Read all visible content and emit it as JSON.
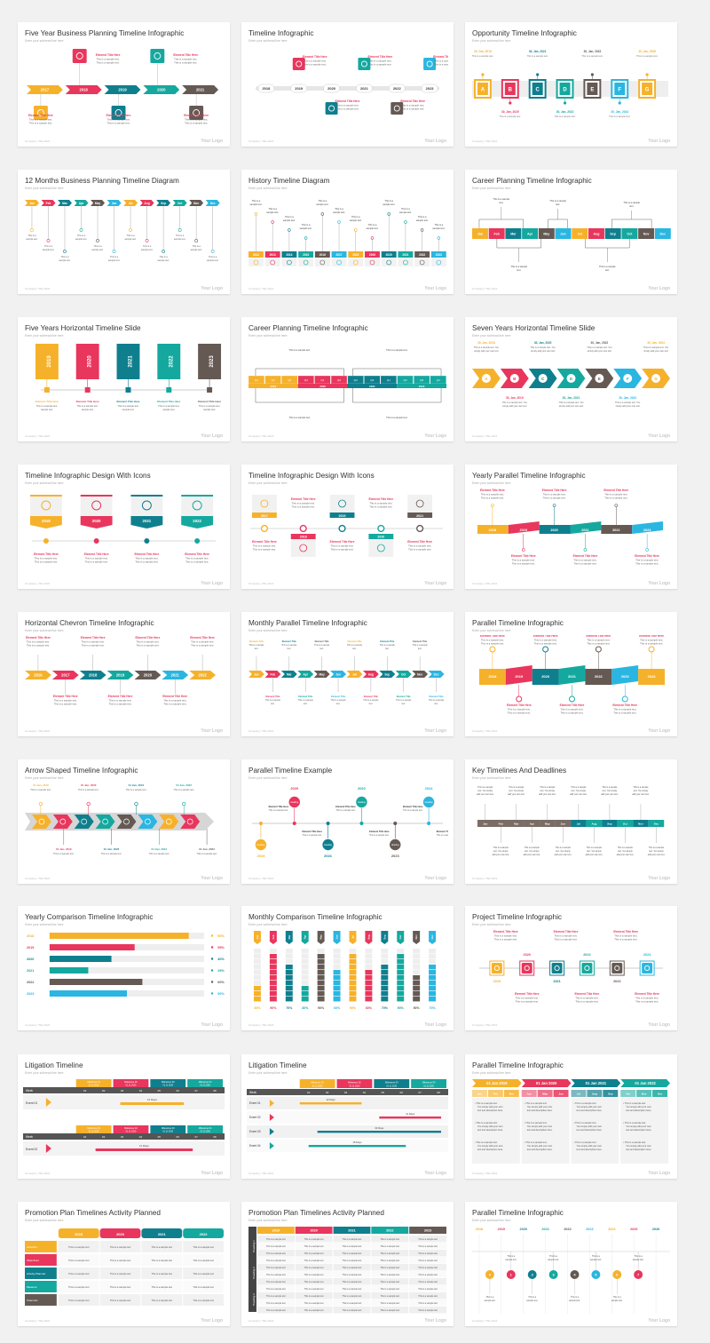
{
  "colors": [
    "#f6b12b",
    "#e8365d",
    "#0f7f8e",
    "#15a89e",
    "#655954",
    "#2ab6e0"
  ],
  "footer": "Company | Title 2021",
  "logo": "Your Logo",
  "subtitle": "Enter your subhead line here",
  "sample_text": "This is a sample text.",
  "element_title": "Element Title Here",
  "slides": [
    {
      "title": "Five Year Business Planning Timeline Infographic",
      "viz": "chevron5",
      "labels": [
        "2017",
        "2018",
        "2019",
        "2020",
        "2021"
      ]
    },
    {
      "title": "Timeline Infographic",
      "viz": "iconline",
      "labels": [
        "2018",
        "2019",
        "2020",
        "2021",
        "2022",
        "2023"
      ]
    },
    {
      "title": "Opportunity Timeline Infographic",
      "viz": "boxes",
      "labels": [
        "A",
        "B",
        "C",
        "D",
        "E",
        "F",
        "G"
      ]
    },
    {
      "title": "12 Months Business Planning Timeline Diagram",
      "viz": "months",
      "labels": [
        "Jan",
        "Feb",
        "Mar",
        "Apr",
        "May",
        "Jun",
        "Jul",
        "Aug",
        "Sep",
        "Oct",
        "Nov",
        "Dec"
      ]
    },
    {
      "title": "History Timeline Diagram",
      "viz": "history",
      "labels": [
        "2012",
        "2013",
        "2014",
        "2015",
        "2016",
        "2017",
        "2018",
        "2019",
        "2020",
        "2021",
        "2022",
        "2023"
      ]
    },
    {
      "title": "Career Planning Timeline Infographic",
      "viz": "career",
      "labels": [
        "Jan",
        "Feb",
        "Mar",
        "Apr",
        "May",
        "Jun",
        "Jul",
        "Aug",
        "Sep",
        "Oct",
        "Nov",
        "Dec"
      ]
    },
    {
      "title": "Five Years Horizontal Timeline Slide",
      "viz": "vbars",
      "labels": [
        "2019",
        "2020",
        "2021",
        "2022",
        "2023"
      ]
    },
    {
      "title": "Career Planning Timeline Infographic",
      "viz": "career2",
      "labels": [
        "Q1",
        "Q2",
        "Q3",
        "Q4",
        "Q1",
        "Q2",
        "Q3",
        "Q4",
        "Q1",
        "Q2",
        "Q3",
        "Q4"
      ]
    },
    {
      "title": "Seven Years Horizontal Timeline Slide",
      "viz": "chevron7",
      "labels": [
        "A",
        "B",
        "C",
        "D",
        "E",
        "F",
        "G"
      ]
    },
    {
      "title": "Timeline Infographic Design With Icons",
      "viz": "icons4",
      "labels": [
        "2019",
        "2020",
        "2021",
        "2022"
      ]
    },
    {
      "title": "Timeline Infographic Design With Icons",
      "viz": "icons5",
      "labels": [
        "2017",
        "2018",
        "2019",
        "2020",
        "2021"
      ]
    },
    {
      "title": "Yearly Parallel Timeline Infographic",
      "viz": "parallel6",
      "labels": [
        "2018",
        "2019",
        "2020",
        "2021",
        "2022",
        "2023"
      ]
    },
    {
      "title": "Horizontal Chevron Timeline Infographic",
      "viz": "chevron7b",
      "labels": [
        "2016",
        "2017",
        "2018",
        "2019",
        "2020",
        "2021",
        "2022"
      ]
    },
    {
      "title": "Monthly Parallel Timeline Infographic",
      "viz": "months2",
      "labels": [
        "Jan",
        "Feb",
        "Mar",
        "Apr",
        "May",
        "Jun",
        "Jul",
        "Aug",
        "Sep",
        "Oct",
        "Nov",
        "Dec"
      ]
    },
    {
      "title": "Parallel Timeline Infographic",
      "viz": "parallel7",
      "labels": [
        "2018",
        "2019",
        "2020",
        "2021",
        "2022",
        "2023",
        "2024"
      ]
    },
    {
      "title": "Arrow Shaped Timeline Infographic",
      "viz": "arrowshape",
      "labels": [
        "01 Jan, 2019",
        "01 Jan, 2020",
        "01 Jan, 2021",
        "01 Jan, 2022"
      ]
    },
    {
      "title": "Parallel Timeline Example",
      "viz": "circles",
      "labels": [
        "2019",
        "2020",
        "2021",
        "2022",
        "2023",
        "2024"
      ]
    },
    {
      "title": "Key Timelines And Deadlines",
      "viz": "keytl",
      "labels": [
        "Jan",
        "Feb",
        "Mar",
        "Apr",
        "May",
        "Jun",
        "Jul",
        "Aug",
        "Sep",
        "Oct",
        "Nov",
        "Dec"
      ]
    },
    {
      "title": "Yearly Comparison Timeline Infographic",
      "viz": "hbars",
      "labels": [
        "2018",
        "2019",
        "2020",
        "2021",
        "2022",
        "2023"
      ],
      "values": [
        90,
        55,
        40,
        25,
        60,
        50
      ]
    },
    {
      "title": "Monthly Comparison Timeline Infographic",
      "viz": "vstack",
      "labels": [
        "Jan",
        "Feb",
        "Mar",
        "Apr",
        "May",
        "Jun",
        "Jul",
        "Aug",
        "Sep",
        "Oct",
        "Nov",
        "Dec"
      ],
      "values": [
        30,
        90,
        70,
        30,
        90,
        60,
        90,
        60,
        70,
        90,
        50,
        70
      ]
    },
    {
      "title": "Project Timeline Infographic",
      "viz": "project",
      "labels": [
        "2019",
        "2020",
        "2021",
        "2022",
        "2023",
        "2024"
      ]
    },
    {
      "title": "Litigation Timeline",
      "viz": "litig1",
      "labels": [
        "01",
        "02",
        "03",
        "04",
        "05",
        "06",
        "07",
        "08"
      ]
    },
    {
      "title": "Litigation Timeline",
      "viz": "litig2",
      "labels": [
        "01",
        "02",
        "03",
        "04",
        "05",
        "06",
        "07",
        "08"
      ]
    },
    {
      "title": "Parallel Timeline Infographic",
      "viz": "ptable",
      "labels": [
        "01 Jan 2019",
        "01 Jan 2020",
        "01 Jan 2021",
        "01 Jan 2022"
      ]
    },
    {
      "title": "Promotion Plan Timelines Activity Planned",
      "viz": "promo1",
      "labels": [
        "2019",
        "2020",
        "2021",
        "2022"
      ]
    },
    {
      "title": "Promotion Plan Timelines Activity Planned",
      "viz": "promo2",
      "labels": [
        "2019",
        "2020",
        "2021",
        "2022",
        "2023"
      ]
    },
    {
      "title": "Parallel Timeline Infographic",
      "viz": "dots9",
      "labels": [
        "2018",
        "2019",
        "2020",
        "2021",
        "2022",
        "2023",
        "2024",
        "2025",
        "2026"
      ]
    }
  ]
}
